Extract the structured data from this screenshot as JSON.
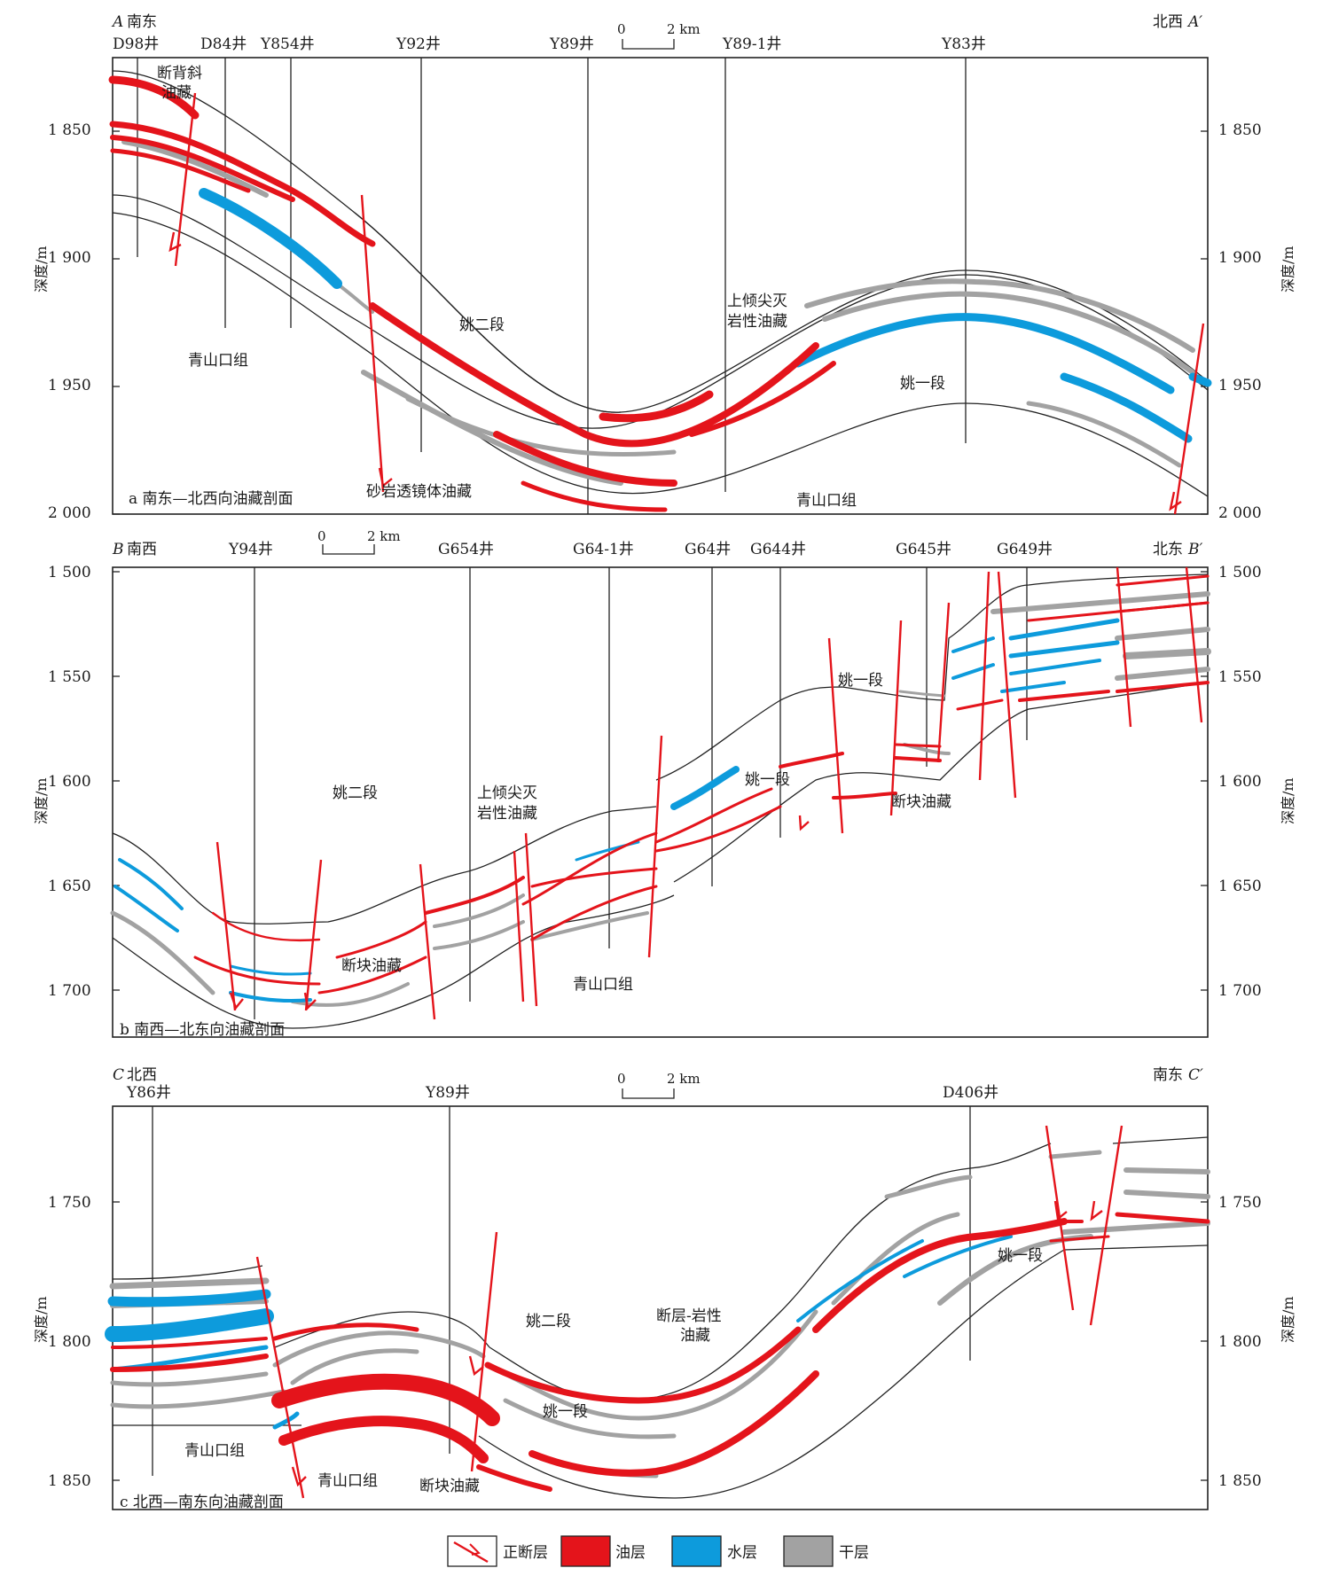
{
  "colors": {
    "oil": "#e4141b",
    "water": "#0d9bdc",
    "dry": "#a2a2a2",
    "fault": "#e4141b",
    "line": "#222222"
  },
  "panels": [
    {
      "id": "a",
      "left_label": {
        "letter": "A",
        "dir": "南东"
      },
      "right_label": {
        "dir": "北西",
        "letter": "A′"
      },
      "caption": "a 南东—北西向油藏剖面",
      "scale": {
        "zero": "0",
        "dist": "2 km"
      },
      "y_ticks": [
        "1 850",
        "1 900",
        "1 950",
        "2 000"
      ],
      "y_axis": "深度/m",
      "wells": [
        "D98井",
        "D84井",
        "Y854井",
        "Y92井",
        "Y89井",
        "Y89-1井",
        "Y83井"
      ],
      "labels": [
        "断背斜",
        "油藏",
        "姚二段",
        "青山口组",
        "上倾尖灭",
        "岩性油藏",
        "姚一段",
        "砂岩透镜体油藏",
        "青山口组"
      ]
    },
    {
      "id": "b",
      "left_label": {
        "letter": "B",
        "dir": "南西"
      },
      "right_label": {
        "dir": "北东",
        "letter": "B′"
      },
      "caption": "b 南西—北东向油藏剖面",
      "scale": {
        "zero": "0",
        "dist": "2 km"
      },
      "y_ticks": [
        "1 500",
        "1 550",
        "1 600",
        "1 650",
        "1 700"
      ],
      "y_axis": "深度/m",
      "wells": [
        "Y94井",
        "G654井",
        "G64-1井",
        "G64井",
        "G644井",
        "G645井",
        "G649井"
      ],
      "labels": [
        "姚二段",
        "上倾尖灭",
        "岩性油藏",
        "姚一段",
        "姚一段",
        "断块油藏",
        "断块油藏",
        "青山口组"
      ]
    },
    {
      "id": "c",
      "left_label": {
        "letter": "C",
        "dir": "北西"
      },
      "right_label": {
        "dir": "南东",
        "letter": "C′"
      },
      "caption": "c 北西—南东向油藏剖面",
      "scale": {
        "zero": "0",
        "dist": "2 km"
      },
      "y_ticks": [
        "1 750",
        "1 800",
        "1 850"
      ],
      "y_axis": "深度/m",
      "wells": [
        "Y86井",
        "Y89井",
        "D406井"
      ],
      "labels": [
        "姚二段",
        "断层-岩性",
        "油藏",
        "姚一段",
        "姚一段",
        "青山口组",
        "青山口组",
        "断块油藏"
      ]
    }
  ],
  "legend": [
    "正断层",
    "油层",
    "水层",
    "干层"
  ]
}
